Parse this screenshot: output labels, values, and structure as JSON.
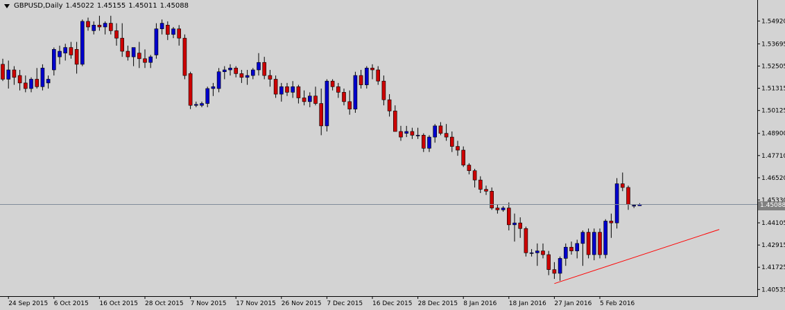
{
  "header": {
    "symbol": "GBPUSD,Daily",
    "open": "1.45022",
    "high": "1.45155",
    "low": "1.45011",
    "close": "1.45088"
  },
  "current_price_label": "1.45088",
  "colors": {
    "background": "#d3d3d3",
    "bull": "#0000cc",
    "bear": "#cc0000",
    "wick": "#000000",
    "trendline": "#ff0000",
    "price_line": "#808b9a"
  },
  "chart_data": {
    "type": "candlestick",
    "symbol": "GBPUSD",
    "timeframe": "Daily",
    "ylim": [
      1.4025,
      1.556
    ],
    "y_ticks": [
      "1.54920",
      "1.53695",
      "1.52505",
      "1.51315",
      "1.50125",
      "1.48900",
      "1.47710",
      "1.46520",
      "1.45330",
      "1.44105",
      "1.42915",
      "1.41725",
      "1.40535"
    ],
    "x_ticks": [
      {
        "label": "24 Sep 2015",
        "index": 1
      },
      {
        "label": "6 Oct 2015",
        "index": 9
      },
      {
        "label": "16 Oct 2015",
        "index": 17
      },
      {
        "label": "28 Oct 2015",
        "index": 25
      },
      {
        "label": "7 Nov 2015",
        "index": 33
      },
      {
        "label": "17 Nov 2015",
        "index": 41
      },
      {
        "label": "26 Nov 2015",
        "index": 49
      },
      {
        "label": "7 Dec 2015",
        "index": 57
      },
      {
        "label": "16 Dec 2015",
        "index": 65
      },
      {
        "label": "28 Dec 2015",
        "index": 73
      },
      {
        "label": "8 Jan 2016",
        "index": 81
      },
      {
        "label": "18 Jan 2016",
        "index": 89
      },
      {
        "label": "27 Jan 2016",
        "index": 97
      },
      {
        "label": "5 Feb 2016",
        "index": 105
      }
    ],
    "candles": [
      [
        1.526,
        1.529,
        1.517,
        1.518
      ],
      [
        1.518,
        1.528,
        1.513,
        1.523
      ],
      [
        1.523,
        1.525,
        1.515,
        1.519
      ],
      [
        1.52,
        1.523,
        1.512,
        1.516
      ],
      [
        1.516,
        1.52,
        1.511,
        1.513
      ],
      [
        1.513,
        1.519,
        1.511,
        1.518
      ],
      [
        1.518,
        1.524,
        1.513,
        1.514
      ],
      [
        1.514,
        1.526,
        1.512,
        1.524
      ],
      [
        1.516,
        1.52,
        1.513,
        1.518
      ],
      [
        1.523,
        1.535,
        1.52,
        1.534
      ],
      [
        1.53,
        1.536,
        1.526,
        1.533
      ],
      [
        1.532,
        1.537,
        1.528,
        1.535
      ],
      [
        1.535,
        1.538,
        1.529,
        1.531
      ],
      [
        1.534,
        1.538,
        1.521,
        1.526
      ],
      [
        1.526,
        1.55,
        1.525,
        1.549
      ],
      [
        1.549,
        1.551,
        1.544,
        1.546
      ],
      [
        1.544,
        1.549,
        1.542,
        1.547
      ],
      [
        1.547,
        1.552,
        1.544,
        1.546
      ],
      [
        1.546,
        1.549,
        1.542,
        1.548
      ],
      [
        1.548,
        1.552,
        1.542,
        1.544
      ],
      [
        1.544,
        1.548,
        1.536,
        1.54
      ],
      [
        1.54,
        1.548,
        1.53,
        1.533
      ],
      [
        1.533,
        1.536,
        1.528,
        1.53
      ],
      [
        1.53,
        1.535,
        1.525,
        1.535
      ],
      [
        1.532,
        1.538,
        1.524,
        1.529
      ],
      [
        1.529,
        1.534,
        1.524,
        1.527
      ],
      [
        1.527,
        1.531,
        1.524,
        1.53
      ],
      [
        1.531,
        1.548,
        1.529,
        1.545
      ],
      [
        1.545,
        1.55,
        1.542,
        1.548
      ],
      [
        1.547,
        1.549,
        1.539,
        1.542
      ],
      [
        1.542,
        1.546,
        1.54,
        1.545
      ],
      [
        1.545,
        1.547,
        1.536,
        1.54
      ],
      [
        1.54,
        1.542,
        1.518,
        1.52
      ],
      [
        1.521,
        1.522,
        1.502,
        1.504
      ],
      [
        1.504,
        1.506,
        1.503,
        1.5045
      ],
      [
        1.504,
        1.506,
        1.503,
        1.505
      ],
      [
        1.505,
        1.514,
        1.503,
        1.513
      ],
      [
        1.513,
        1.516,
        1.509,
        1.514
      ],
      [
        1.513,
        1.524,
        1.511,
        1.522
      ],
      [
        1.522,
        1.525,
        1.518,
        1.523
      ],
      [
        1.523,
        1.526,
        1.52,
        1.524
      ],
      [
        1.524,
        1.525,
        1.519,
        1.521
      ],
      [
        1.521,
        1.523,
        1.516,
        1.519
      ],
      [
        1.519,
        1.523,
        1.515,
        1.52
      ],
      [
        1.52,
        1.524,
        1.518,
        1.523
      ],
      [
        1.523,
        1.532,
        1.52,
        1.527
      ],
      [
        1.527,
        1.53,
        1.518,
        1.52
      ],
      [
        1.52,
        1.523,
        1.514,
        1.518
      ],
      [
        1.518,
        1.52,
        1.508,
        1.51
      ],
      [
        1.51,
        1.516,
        1.506,
        1.514
      ],
      [
        1.514,
        1.516,
        1.509,
        1.511
      ],
      [
        1.511,
        1.517,
        1.508,
        1.514
      ],
      [
        1.514,
        1.515,
        1.505,
        1.508
      ],
      [
        1.508,
        1.512,
        1.504,
        1.506
      ],
      [
        1.506,
        1.511,
        1.503,
        1.509
      ],
      [
        1.509,
        1.514,
        1.504,
        1.505
      ],
      [
        1.505,
        1.513,
        1.488,
        1.493
      ],
      [
        1.493,
        1.518,
        1.49,
        1.517
      ],
      [
        1.517,
        1.518,
        1.512,
        1.514
      ],
      [
        1.514,
        1.516,
        1.508,
        1.511
      ],
      [
        1.511,
        1.513,
        1.504,
        1.506
      ],
      [
        1.506,
        1.512,
        1.499,
        1.502
      ],
      [
        1.502,
        1.522,
        1.5,
        1.52
      ],
      [
        1.52,
        1.523,
        1.513,
        1.515
      ],
      [
        1.515,
        1.525,
        1.513,
        1.524
      ],
      [
        1.524,
        1.526,
        1.518,
        1.523
      ],
      [
        1.523,
        1.525,
        1.515,
        1.517
      ],
      [
        1.517,
        1.52,
        1.504,
        1.507
      ],
      [
        1.507,
        1.51,
        1.498,
        1.501
      ],
      [
        1.501,
        1.504,
        1.49,
        1.49
      ],
      [
        1.49,
        1.493,
        1.485,
        1.487
      ],
      [
        1.489,
        1.493,
        1.487,
        1.49
      ],
      [
        1.49,
        1.492,
        1.486,
        1.488
      ],
      [
        1.488,
        1.492,
        1.486,
        1.488
      ],
      [
        1.488,
        1.489,
        1.479,
        1.481
      ],
      [
        1.481,
        1.488,
        1.479,
        1.487
      ],
      [
        1.487,
        1.494,
        1.484,
        1.493
      ],
      [
        1.493,
        1.495,
        1.488,
        1.489
      ],
      [
        1.489,
        1.494,
        1.485,
        1.487
      ],
      [
        1.487,
        1.49,
        1.479,
        1.482
      ],
      [
        1.482,
        1.485,
        1.477,
        1.48
      ],
      [
        1.48,
        1.482,
        1.471,
        1.472
      ],
      [
        1.472,
        1.473,
        1.467,
        1.469
      ],
      [
        1.469,
        1.47,
        1.46,
        1.464
      ],
      [
        1.464,
        1.466,
        1.457,
        1.459
      ],
      [
        1.459,
        1.461,
        1.456,
        1.458
      ],
      [
        1.458,
        1.46,
        1.448,
        1.449
      ],
      [
        1.449,
        1.451,
        1.446,
        1.448
      ],
      [
        1.448,
        1.45,
        1.447,
        1.449
      ],
      [
        1.449,
        1.452,
        1.437,
        1.44
      ],
      [
        1.44,
        1.446,
        1.431,
        1.441
      ],
      [
        1.441,
        1.444,
        1.433,
        1.438
      ],
      [
        1.438,
        1.439,
        1.423,
        1.425
      ],
      [
        1.425,
        1.427,
        1.423,
        1.425
      ],
      [
        1.425,
        1.43,
        1.418,
        1.426
      ],
      [
        1.426,
        1.43,
        1.422,
        1.424
      ],
      [
        1.424,
        1.426,
        1.413,
        1.416
      ],
      [
        1.416,
        1.42,
        1.411,
        1.414
      ],
      [
        1.414,
        1.423,
        1.41,
        1.422
      ],
      [
        1.422,
        1.43,
        1.418,
        1.428
      ],
      [
        1.428,
        1.431,
        1.424,
        1.426
      ],
      [
        1.426,
        1.432,
        1.422,
        1.43
      ],
      [
        1.43,
        1.437,
        1.418,
        1.436
      ],
      [
        1.436,
        1.438,
        1.422,
        1.424
      ],
      [
        1.424,
        1.438,
        1.421,
        1.436
      ],
      [
        1.436,
        1.438,
        1.422,
        1.424
      ],
      [
        1.424,
        1.443,
        1.422,
        1.442
      ],
      [
        1.442,
        1.446,
        1.433,
        1.441
      ],
      [
        1.441,
        1.465,
        1.438,
        1.462
      ],
      [
        1.462,
        1.468,
        1.458,
        1.46
      ],
      [
        1.46,
        1.461,
        1.448,
        1.451
      ],
      [
        1.45,
        1.451,
        1.449,
        1.4505
      ],
      [
        1.45022,
        1.45155,
        1.45011,
        1.45088
      ]
    ],
    "current_price": 1.45088,
    "trendline": {
      "from": {
        "index": 97,
        "price": 1.4085
      },
      "to": {
        "index": 126,
        "price": 1.4375
      }
    }
  }
}
